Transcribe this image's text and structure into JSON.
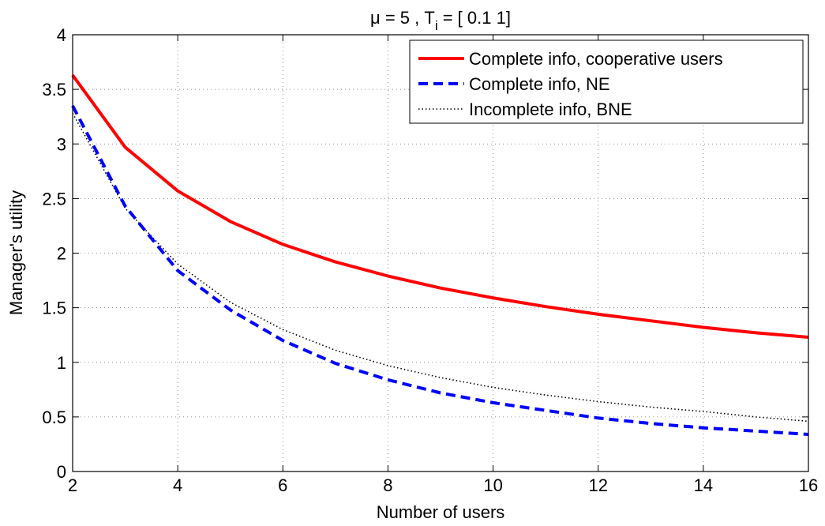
{
  "chart_data": {
    "type": "line",
    "title": "μ = 5 , T",
    "title_subscript": "i",
    "title_suffix": " = [ 0.1 1]",
    "xlabel": "Number of users",
    "ylabel": "Manager's utility",
    "xlim": [
      2,
      16
    ],
    "ylim": [
      0,
      4
    ],
    "xticks": [
      "2",
      "4",
      "6",
      "8",
      "10",
      "12",
      "14",
      "16"
    ],
    "yticks": [
      "0",
      "0.5",
      "1",
      "1.5",
      "2",
      "2.5",
      "3",
      "3.5",
      "4"
    ],
    "grid": true,
    "legend_position": "top-right",
    "x": [
      2,
      3,
      4,
      5,
      6,
      7,
      8,
      9,
      10,
      11,
      12,
      13,
      14,
      15,
      16
    ],
    "series": [
      {
        "name": "Complete info, cooperative users",
        "color": "#ff0000",
        "style": "solid",
        "values": [
          3.63,
          2.97,
          2.57,
          2.29,
          2.08,
          1.92,
          1.79,
          1.68,
          1.59,
          1.51,
          1.44,
          1.38,
          1.32,
          1.27,
          1.23
        ]
      },
      {
        "name": "Complete info, NE",
        "color": "#0000ff",
        "style": "dashed",
        "values": [
          3.35,
          2.43,
          1.84,
          1.48,
          1.2,
          0.99,
          0.84,
          0.72,
          0.63,
          0.56,
          0.49,
          0.44,
          0.4,
          0.37,
          0.34
        ]
      },
      {
        "name": "Incomplete info, BNE",
        "color": "#000000",
        "style": "dotted",
        "values": [
          3.28,
          2.41,
          1.9,
          1.55,
          1.3,
          1.11,
          0.97,
          0.86,
          0.77,
          0.7,
          0.64,
          0.59,
          0.55,
          0.5,
          0.46
        ]
      }
    ]
  }
}
